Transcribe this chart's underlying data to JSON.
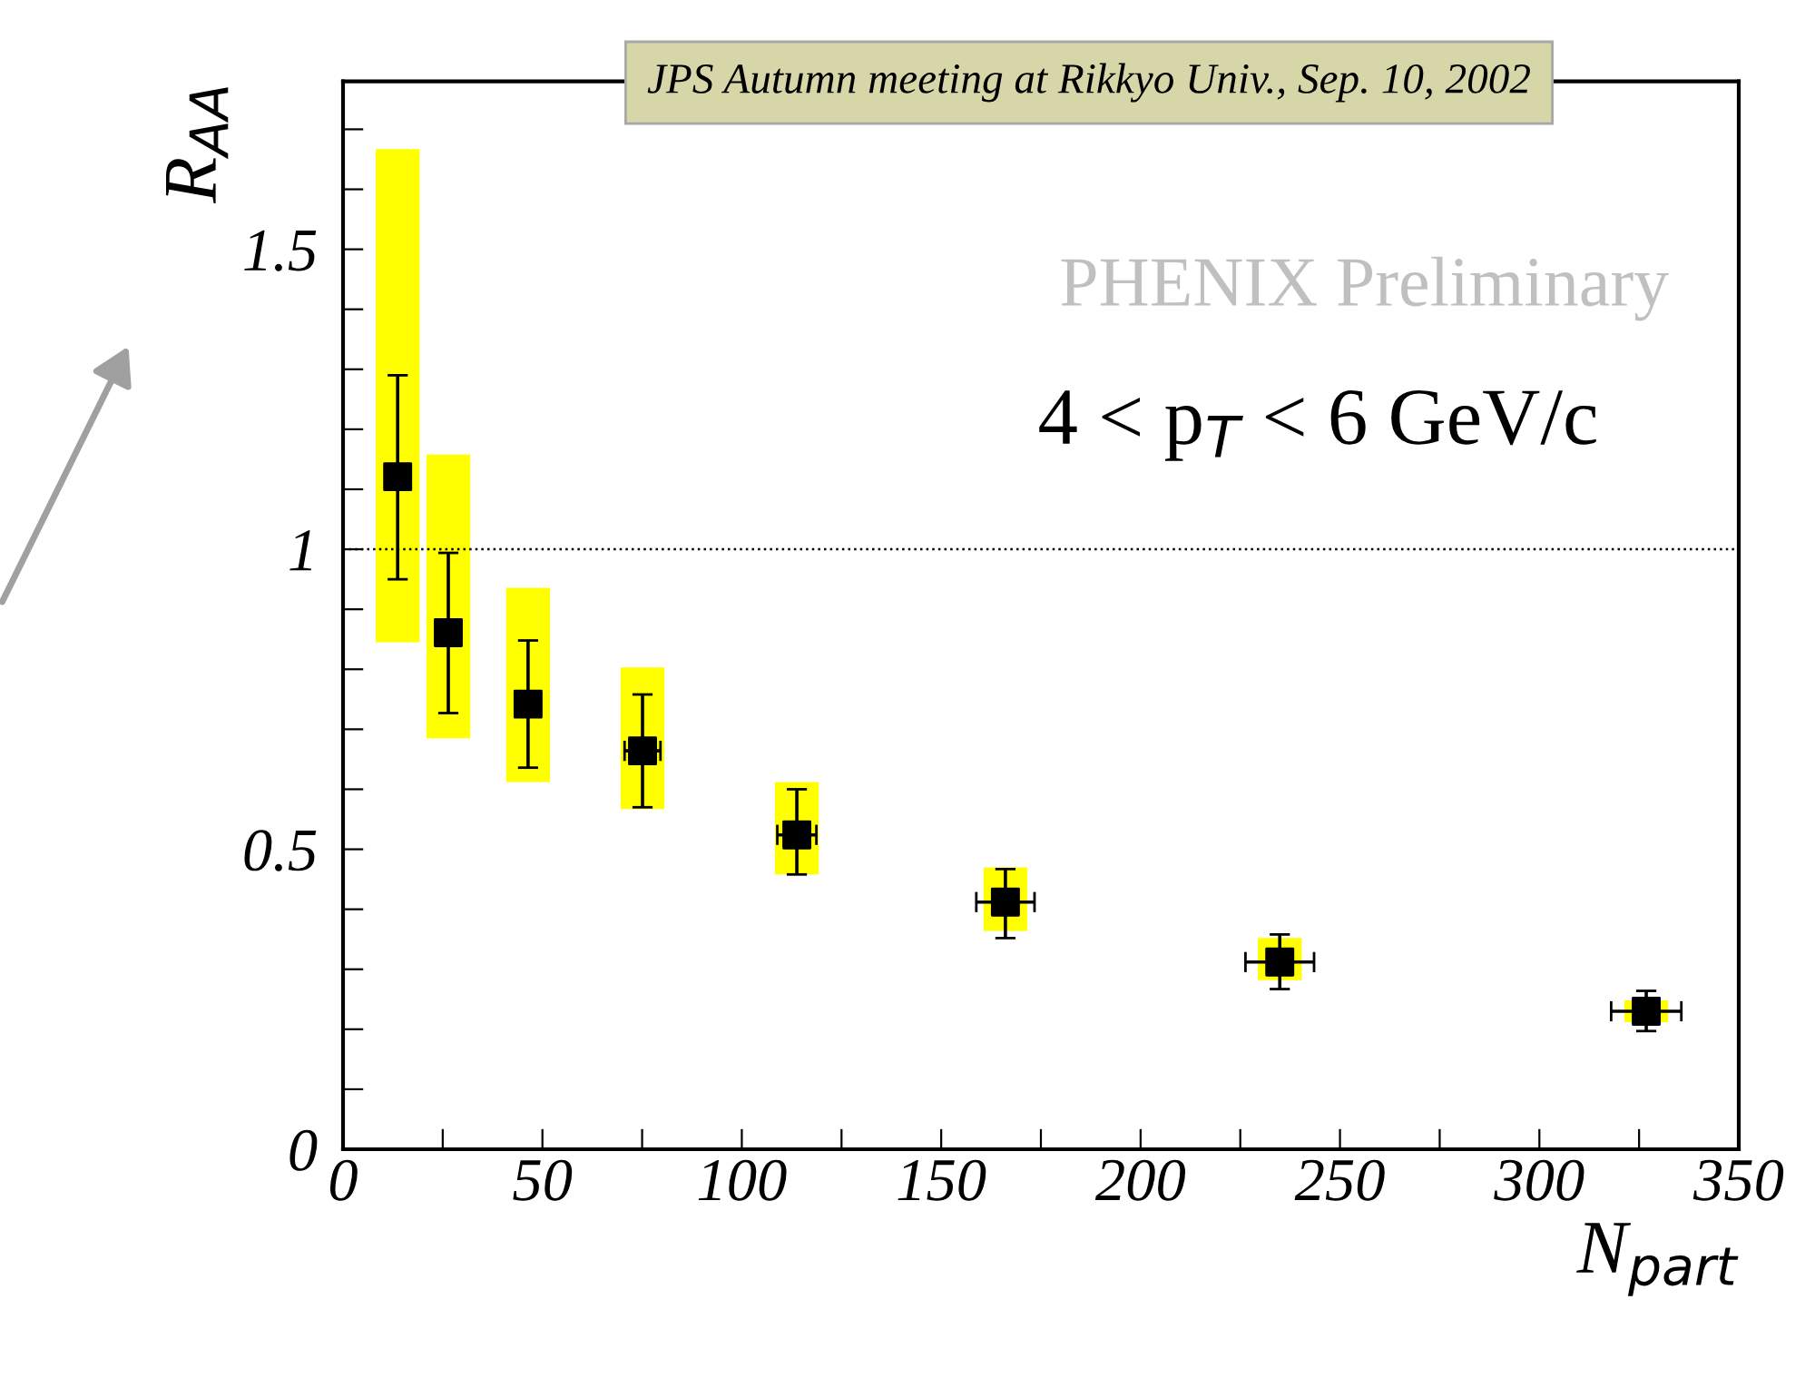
{
  "chart_data": {
    "type": "scatter",
    "title": "JPS Autumn meeting at Rikkyo Univ., Sep. 10, 2002",
    "xlabel": "N$_{part}$",
    "ylabel": "R$_{AA}$",
    "annotations": [
      "PHENIX Preliminary",
      "4 < p$_{T}$ < 6 GeV/c"
    ],
    "xlim": [
      0,
      350
    ],
    "ylim": [
      0,
      1.78
    ],
    "xticks": [
      0,
      {
        "value": 25,
        "label": null
      },
      50,
      {
        "value": 75,
        "label": null
      },
      100,
      {
        "value": 125,
        "label": null
      },
      150,
      {
        "value": 175,
        "label": null
      },
      200,
      {
        "value": 225,
        "label": null
      },
      250,
      {
        "value": 275,
        "label": null
      },
      300,
      {
        "value": 325,
        "label": null
      },
      350
    ],
    "yticks": [
      0,
      {
        "value": 0.1,
        "label": null
      },
      {
        "value": 0.2,
        "label": null
      },
      {
        "value": 0.3,
        "label": null
      },
      {
        "value": 0.4,
        "label": null
      },
      0.5,
      {
        "value": 0.6,
        "label": null
      },
      {
        "value": 0.7,
        "label": null
      },
      {
        "value": 0.8,
        "label": null
      },
      {
        "value": 0.9,
        "label": null
      },
      1,
      {
        "value": 1.1,
        "label": null
      },
      {
        "value": 1.2,
        "label": null
      },
      {
        "value": 1.3,
        "label": null
      },
      {
        "value": 1.4,
        "label": null
      },
      1.5,
      {
        "value": 1.6,
        "label": null
      },
      {
        "value": 1.7,
        "label": null
      }
    ],
    "ref_lines": [
      {
        "axis": "y",
        "value": 1,
        "color": "#000000",
        "line_style": "dotted"
      }
    ],
    "grid": false,
    "legend": false,
    "series": [
      {
        "type": "bar",
        "color": "#ffff00",
        "x": [
          13.7,
          26.4,
          46.4,
          75.1,
          113.8,
          166.1,
          234.9,
          326.8
        ],
        "base": [
          0.845,
          0.685,
          0.612,
          0.567,
          0.458,
          0.364,
          0.282,
          0.212
        ],
        "values": [
          0.822,
          0.473,
          0.324,
          0.236,
          0.154,
          0.106,
          0.07,
          0.036
        ]
      },
      {
        "color": "#000000",
        "marker": "square",
        "x": [
          13.7,
          26.4,
          46.4,
          75.1,
          113.8,
          166.1,
          234.9,
          326.8
        ],
        "values": [
          1.121,
          0.861,
          0.742,
          0.664,
          0.524,
          0.412,
          0.312,
          0.23
        ],
        "errors": [
          [
            0.95,
            1.29
          ],
          [
            0.727,
            0.994
          ],
          [
            0.636,
            0.848
          ],
          [
            0.57,
            0.758
          ],
          [
            0.458,
            0.6
          ],
          [
            0.352,
            0.467
          ],
          [
            0.267,
            0.358
          ],
          [
            0.197,
            0.264
          ]
        ],
        "xerrors": [
          null,
          null,
          2.5,
          4.5,
          4.9,
          7.3,
          8.6,
          8.8
        ]
      }
    ]
  }
}
